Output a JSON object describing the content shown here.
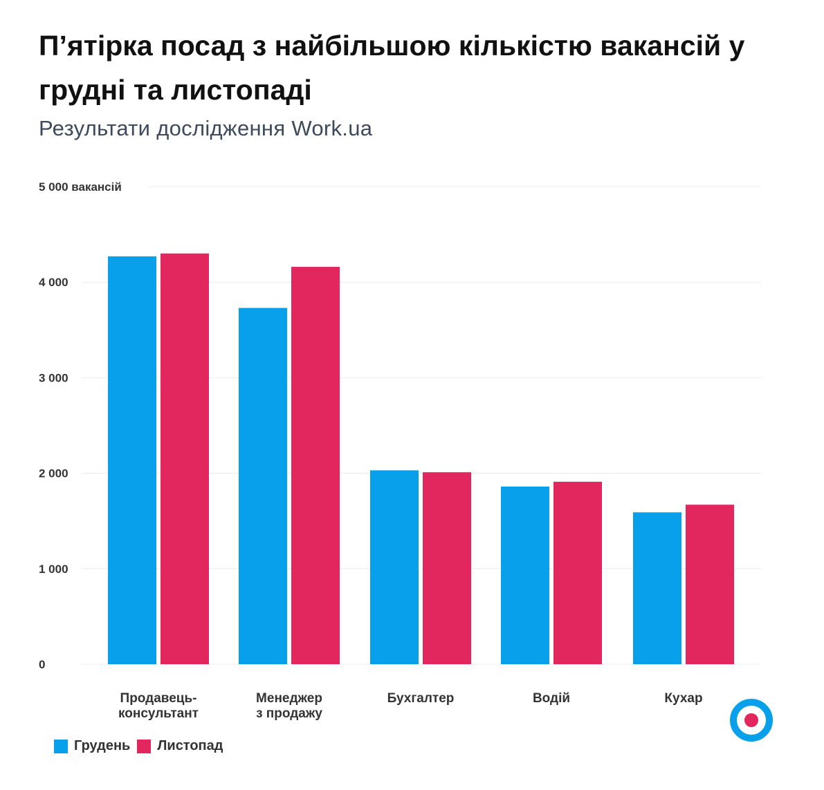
{
  "header": {
    "title": "П’ятірка посад з найбільшою кількістю вакансій у грудні та листопаді",
    "subtitle": "Результати дослідження Work.ua"
  },
  "chart_data": {
    "type": "bar",
    "title": "П’ятірка посад з найбільшою кількістю вакансій у грудні та листопаді",
    "subtitle": "Результати дослідження Work.ua",
    "categories": [
      [
        "Продавець-",
        "консультант"
      ],
      [
        "Менеджер",
        "з продажу"
      ],
      [
        "Бухгалтер"
      ],
      [
        "Водій"
      ],
      [
        "Кухар"
      ]
    ],
    "series": [
      {
        "name": "Грудень",
        "color": "#08a0ea",
        "values": [
          4270,
          3730,
          2030,
          1860,
          1590
        ]
      },
      {
        "name": "Листопад",
        "color": "#e2275f",
        "values": [
          4300,
          4160,
          2010,
          1910,
          1670
        ]
      }
    ],
    "yticks": [
      {
        "value": 0,
        "label": "0"
      },
      {
        "value": 1000,
        "label": "1 000"
      },
      {
        "value": 2000,
        "label": "2 000"
      },
      {
        "value": 3000,
        "label": "3 000"
      },
      {
        "value": 4000,
        "label": "4 000"
      },
      {
        "value": 5000,
        "label": "5 000 вакансій"
      }
    ],
    "ylim": [
      0,
      5000
    ],
    "grid": true,
    "legend_position": "bottom-left"
  },
  "legend": {
    "items": [
      {
        "label": "Грудень",
        "color": "#08a0ea"
      },
      {
        "label": "Листопад",
        "color": "#e2275f"
      }
    ]
  },
  "logo": {
    "icon": "target-logo-icon",
    "outer_color": "#08a0ea",
    "inner_color": "#e2275f"
  }
}
